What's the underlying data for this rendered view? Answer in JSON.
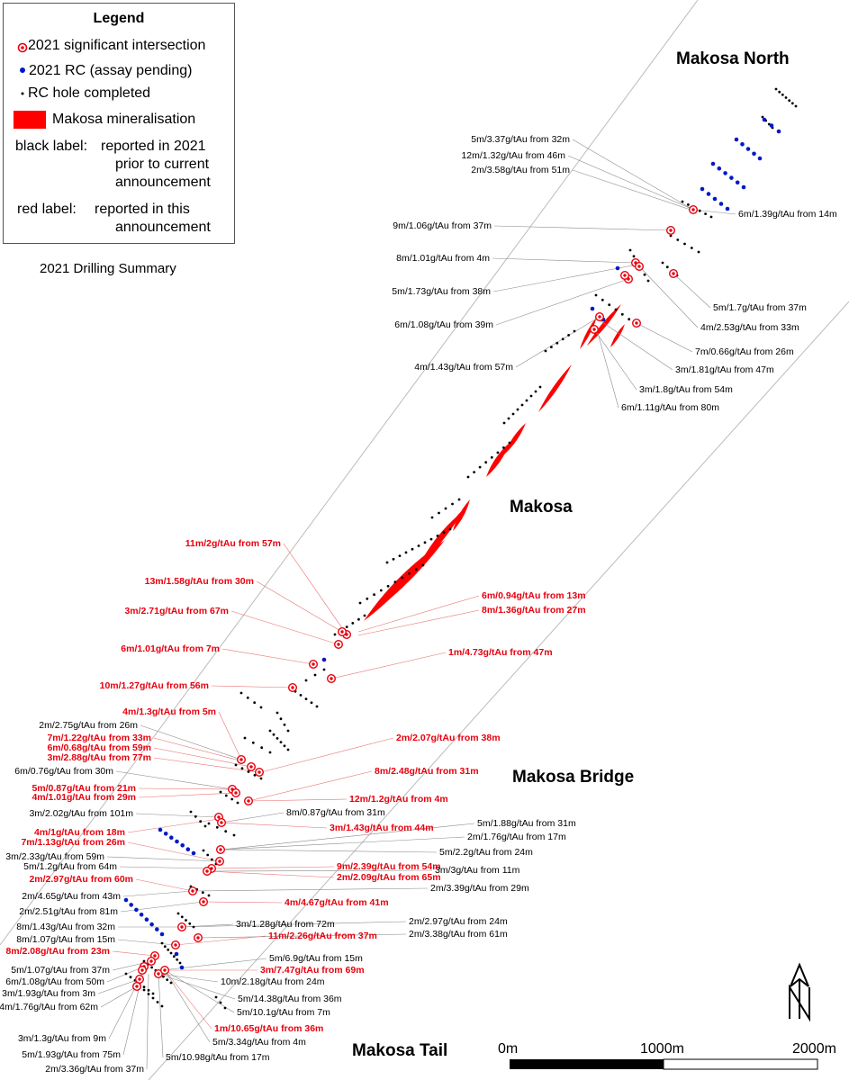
{
  "legend": {
    "title": "Legend",
    "significant": "2021 significant intersection",
    "rc_pending": "2021 RC (assay pending)",
    "rc_completed": "RC hole completed",
    "mineralisation": "Makosa mineralisation",
    "black_label_key": "black label:",
    "black_label_text": [
      "reported in 2021",
      "prior to current",
      "announcement"
    ],
    "red_label_key": "red label:",
    "red_label_text": [
      "reported in this",
      "announcement"
    ]
  },
  "map_title": "2021 Drilling Summary",
  "areas": {
    "north": "Makosa North",
    "makosa": "Makosa",
    "bridge": "Makosa Bridge",
    "tail": "Makosa Tail"
  },
  "scale": {
    "zero": "0m",
    "mid": "1000m",
    "end": "2000m"
  },
  "colors": {
    "red": "#e8000d",
    "blue": "#0019c8",
    "black": "#000000"
  },
  "intercepts": [
    {
      "t": "5m/3.37g/tAu from 32m",
      "red": false
    },
    {
      "t": "12m/1.32g/tAu from 46m",
      "red": false
    },
    {
      "t": "2m/3.58g/tAu from 51m",
      "red": false
    },
    {
      "t": "6m/1.39g/tAu from 14m",
      "red": false
    },
    {
      "t": "9m/1.06g/tAu from 37m",
      "red": false
    },
    {
      "t": "8m/1.01g/tAu from 4m",
      "red": false
    },
    {
      "t": "5m/1.73g/tAu from 38m",
      "red": false
    },
    {
      "t": "5m/1.7g/tAu from 37m",
      "red": false
    },
    {
      "t": "4m/2.53g/tAu from 33m",
      "red": false
    },
    {
      "t": "6m/1.08g/tAu from 39m",
      "red": false
    },
    {
      "t": "7m/0.66g/tAu from 26m",
      "red": false
    },
    {
      "t": "4m/1.43g/tAu from 57m",
      "red": false
    },
    {
      "t": "3m/1.81g/tAu from 47m",
      "red": false
    },
    {
      "t": "3m/1.8g/tAu from 54m",
      "red": false
    },
    {
      "t": "6m/1.11g/tAu from 80m",
      "red": false
    },
    {
      "t": "11m/2g/tAu from 57m",
      "red": true
    },
    {
      "t": "13m/1.58g/tAu from 30m",
      "red": true
    },
    {
      "t": "6m/0.94g/tAu from 13m",
      "red": true
    },
    {
      "t": "8m/1.36g/tAu from 27m",
      "red": true
    },
    {
      "t": "3m/2.71g/tAu from 67m",
      "red": true
    },
    {
      "t": "6m/1.01g/tAu from 7m",
      "red": true
    },
    {
      "t": "1m/4.73g/tAu from 47m",
      "red": true
    },
    {
      "t": "10m/1.27g/tAu from 56m",
      "red": true
    },
    {
      "t": "4m/1.3g/tAu from 5m",
      "red": true
    },
    {
      "t": "2m/2.75g/tAu from 26m",
      "red": false
    },
    {
      "t": "7m/1.22g/tAu from 33m",
      "red": true
    },
    {
      "t": "2m/2.07g/tAu from 38m",
      "red": true
    },
    {
      "t": "6m/0.68g/tAu from 59m",
      "red": true
    },
    {
      "t": "3m/2.88g/tAu from 77m",
      "red": true
    },
    {
      "t": "6m/0.76g/tAu from 30m",
      "red": false
    },
    {
      "t": "8m/2.48g/tAu from 31m",
      "red": true
    },
    {
      "t": "5m/0.87g/tAu from 21m",
      "red": true
    },
    {
      "t": "4m/1.01g/tAu from 29m",
      "red": true
    },
    {
      "t": "12m/1.2g/tAu from 4m",
      "red": true
    },
    {
      "t": "3m/2.02g/tAu from 101m",
      "red": false
    },
    {
      "t": "8m/0.87g/tAu from 31m",
      "red": false
    },
    {
      "t": "3m/1.43g/tAu from 44m",
      "red": true
    },
    {
      "t": "5m/1.88g/tAu from 31m",
      "red": false
    },
    {
      "t": "4m/1g/tAu from 18m",
      "red": true
    },
    {
      "t": "2m/1.76g/tAu from 17m",
      "red": false
    },
    {
      "t": "7m/1.13g/tAu from 26m",
      "red": true
    },
    {
      "t": "5m/2.2g/tAu from 24m",
      "red": false
    },
    {
      "t": "3m/2.33g/tAu from 59m",
      "red": false
    },
    {
      "t": "9m/2.39g/tAu from 54m",
      "red": true
    },
    {
      "t": "5m/1.2g/tAu from 64m",
      "red": false
    },
    {
      "t": "3m/3g/tAu from 11m",
      "red": false
    },
    {
      "t": "2m/2.09g/tAu from 65m",
      "red": true
    },
    {
      "t": "2m/2.97g/tAu from 60m",
      "red": true
    },
    {
      "t": "2m/3.39g/tAu from 29m",
      "red": false
    },
    {
      "t": "2m/4.65g/tAu from 43m",
      "red": false
    },
    {
      "t": "4m/4.67g/tAu from 41m",
      "red": true
    },
    {
      "t": "2m/2.51g/tAu from 81m",
      "red": false
    },
    {
      "t": "2m/2.97g/tAu from 24m",
      "red": false
    },
    {
      "t": "8m/1.43g/tAu from 32m",
      "red": false
    },
    {
      "t": "3m/1.28g/tAu from 72m",
      "red": false
    },
    {
      "t": "2m/3.38g/tAu from 61m",
      "red": false
    },
    {
      "t": "8m/1.07g/tAu from 15m",
      "red": false
    },
    {
      "t": "11m/2.26g/tAu from 37m",
      "red": true
    },
    {
      "t": "8m/2.08g/tAu from 23m",
      "red": true
    },
    {
      "t": "5m/6.9g/tAu from 15m",
      "red": false
    },
    {
      "t": "5m/1.07g/tAu from 37m",
      "red": false
    },
    {
      "t": "3m/7.47g/tAu from 69m",
      "red": true
    },
    {
      "t": "6m/1.08g/tAu from 50m",
      "red": false
    },
    {
      "t": "10m/2.18g/tAu from 24m",
      "red": false
    },
    {
      "t": "3m/1.93g/tAu from 3m",
      "red": false
    },
    {
      "t": "5m/14.38g/tAu from 36m",
      "red": false
    },
    {
      "t": "4m/1.76g/tAu from 62m",
      "red": false
    },
    {
      "t": "5m/10.1g/tAu from 7m",
      "red": false
    },
    {
      "t": "1m/10.65g/tAu from 36m",
      "red": true
    },
    {
      "t": "3m/1.3g/tAu from 9m",
      "red": false
    },
    {
      "t": "5m/3.34g/tAu from 4m",
      "red": false
    },
    {
      "t": "5m/1.93g/tAu from 75m",
      "red": false
    },
    {
      "t": "5m/10.98g/tAu from 17m",
      "red": false
    },
    {
      "t": "2m/3.36g/tAu from 37m",
      "red": false
    }
  ]
}
